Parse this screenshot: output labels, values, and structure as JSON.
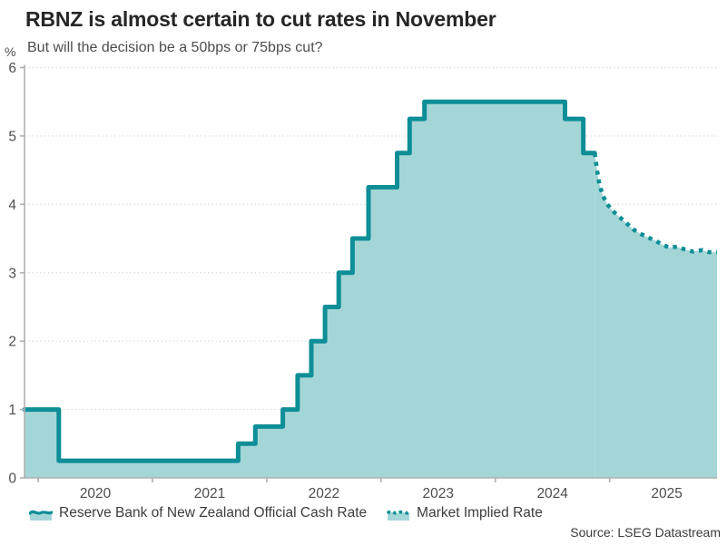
{
  "chart_data": {
    "type": "area",
    "title": "RBNZ is almost certain to cut rates in November",
    "subtitle": "But will the decision be a 50bps or 75bps cut?",
    "unit_label": "%",
    "source": "Source: LSEG Datastream",
    "xlabel": "",
    "ylabel": "%",
    "xlim": [
      2019.88,
      2025.94
    ],
    "ylim": [
      0,
      6
    ],
    "yticks": [
      0,
      1,
      2,
      3,
      4,
      5,
      6
    ],
    "xticks": [
      2020,
      2021,
      2022,
      2023,
      2024,
      2025
    ],
    "xtick_labels": [
      "2020",
      "2021",
      "2022",
      "2023",
      "2024",
      "2025"
    ],
    "grid": "horizontal-dotted",
    "legend_position": "bottom",
    "colors": {
      "line": "#0e8e96",
      "fill": "#a4d6d8",
      "axis": "#b0b0b0",
      "grid": "#dcdcdc",
      "tick_text": "#4d4d4d"
    },
    "series": [
      {
        "name": "Reserve Bank of New Zealand Official Cash Rate",
        "style": "step-solid-area",
        "points": [
          [
            2019.88,
            1.0
          ],
          [
            2020.18,
            0.25
          ],
          [
            2021.75,
            0.5
          ],
          [
            2021.9,
            0.75
          ],
          [
            2022.14,
            1.0
          ],
          [
            2022.27,
            1.5
          ],
          [
            2022.39,
            2.0
          ],
          [
            2022.51,
            2.5
          ],
          [
            2022.63,
            3.0
          ],
          [
            2022.75,
            3.5
          ],
          [
            2022.89,
            4.25
          ],
          [
            2023.14,
            4.75
          ],
          [
            2023.25,
            5.25
          ],
          [
            2023.38,
            5.5
          ],
          [
            2024.61,
            5.25
          ],
          [
            2024.77,
            4.75
          ],
          [
            2024.87,
            4.75
          ]
        ]
      },
      {
        "name": "Market Implied Rate",
        "style": "dotted-line-area",
        "points": [
          [
            2024.87,
            4.75
          ],
          [
            2024.89,
            4.5
          ],
          [
            2024.91,
            4.3
          ],
          [
            2024.94,
            4.13
          ],
          [
            2024.98,
            4.0
          ],
          [
            2025.03,
            3.9
          ],
          [
            2025.09,
            3.81
          ],
          [
            2025.15,
            3.72
          ],
          [
            2025.21,
            3.63
          ],
          [
            2025.27,
            3.57
          ],
          [
            2025.33,
            3.52
          ],
          [
            2025.4,
            3.47
          ],
          [
            2025.46,
            3.41
          ],
          [
            2025.52,
            3.37
          ],
          [
            2025.59,
            3.38
          ],
          [
            2025.66,
            3.34
          ],
          [
            2025.73,
            3.31
          ],
          [
            2025.81,
            3.33
          ],
          [
            2025.87,
            3.3
          ],
          [
            2025.94,
            3.3
          ]
        ]
      }
    ]
  }
}
